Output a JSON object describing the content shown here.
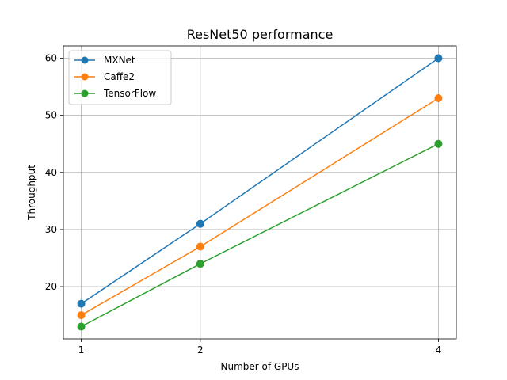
{
  "chart_data": {
    "type": "line",
    "title": "ResNet50 performance",
    "xlabel": "Number of GPUs",
    "ylabel": "Throughput",
    "x": [
      1,
      2,
      4
    ],
    "xticks": [
      "1",
      "2",
      "4"
    ],
    "yticks": [
      "20",
      "30",
      "40",
      "50",
      "60"
    ],
    "xlim": [
      0.85,
      4.15
    ],
    "ylim": [
      10.85,
      62.15
    ],
    "grid": true,
    "legend_position": "top-left",
    "series": [
      {
        "name": "MXNet",
        "values": [
          17,
          31,
          60
        ],
        "color": "#1f77b4",
        "marker": "circle"
      },
      {
        "name": "Caffe2",
        "values": [
          15,
          27,
          53
        ],
        "color": "#ff7f0e",
        "marker": "circle"
      },
      {
        "name": "TensorFlow",
        "values": [
          13,
          24,
          45
        ],
        "color": "#2ca02c",
        "marker": "circle"
      }
    ]
  }
}
